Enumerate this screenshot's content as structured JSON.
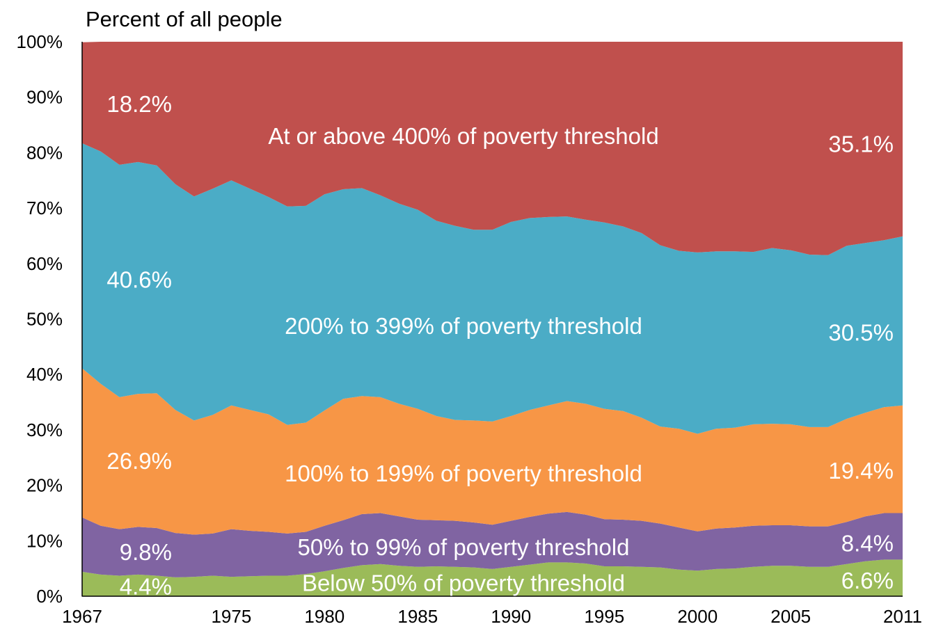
{
  "chart_data": {
    "type": "area",
    "stacked": true,
    "title": "Percent of all people",
    "ylim": [
      0,
      100
    ],
    "y_ticks": [
      "0%",
      "10%",
      "20%",
      "30%",
      "40%",
      "50%",
      "60%",
      "70%",
      "80%",
      "90%",
      "100%"
    ],
    "x_range": [
      1967,
      2011
    ],
    "x_ticks": [
      "1967",
      "1975",
      "1980",
      "1985",
      "1990",
      "1995",
      "2000",
      "2005",
      "2011"
    ],
    "x": [
      1967,
      1968,
      1969,
      1970,
      1971,
      1972,
      1973,
      1974,
      1975,
      1976,
      1977,
      1978,
      1979,
      1980,
      1981,
      1982,
      1983,
      1984,
      1985,
      1986,
      1987,
      1988,
      1989,
      1990,
      1991,
      1992,
      1993,
      1994,
      1995,
      1996,
      1997,
      1998,
      1999,
      2000,
      2001,
      2002,
      2003,
      2004,
      2005,
      2006,
      2007,
      2008,
      2009,
      2010,
      2011
    ],
    "series": [
      {
        "name": "Below 50% of poverty threshold",
        "color": "#9BBB59",
        "values": [
          4.4,
          3.9,
          3.7,
          3.9,
          3.7,
          3.4,
          3.5,
          3.7,
          3.5,
          3.6,
          3.7,
          3.7,
          4.0,
          4.5,
          5.1,
          5.6,
          5.8,
          5.5,
          5.3,
          5.4,
          5.3,
          5.2,
          4.9,
          5.3,
          5.7,
          6.1,
          6.1,
          5.9,
          5.4,
          5.4,
          5.3,
          5.2,
          4.8,
          4.6,
          4.9,
          5.0,
          5.3,
          5.5,
          5.5,
          5.3,
          5.3,
          5.8,
          6.3,
          6.6,
          6.6
        ]
      },
      {
        "name": "50% to 99% of poverty threshold",
        "color": "#8064A2",
        "values": [
          9.8,
          8.8,
          8.4,
          8.6,
          8.6,
          8.0,
          7.6,
          7.6,
          8.6,
          8.2,
          7.9,
          7.6,
          7.6,
          8.2,
          8.6,
          9.2,
          9.2,
          8.9,
          8.5,
          8.3,
          8.3,
          8.1,
          8.0,
          8.3,
          8.6,
          8.8,
          9.1,
          8.8,
          8.5,
          8.4,
          8.3,
          7.9,
          7.6,
          7.1,
          7.3,
          7.4,
          7.4,
          7.3,
          7.3,
          7.3,
          7.3,
          7.6,
          8.1,
          8.4,
          8.4
        ]
      },
      {
        "name": "100% to 199% of poverty threshold",
        "color": "#F79646",
        "values": [
          26.9,
          25.6,
          23.8,
          24.0,
          24.3,
          22.2,
          20.6,
          21.4,
          22.3,
          21.8,
          21.2,
          19.6,
          19.7,
          20.8,
          21.9,
          21.3,
          20.9,
          20.3,
          20.0,
          18.8,
          18.2,
          18.4,
          18.6,
          18.9,
          19.3,
          19.5,
          20.0,
          20.0,
          19.9,
          19.6,
          18.6,
          17.5,
          17.8,
          17.6,
          18.0,
          18.0,
          18.3,
          18.3,
          18.2,
          17.9,
          17.9,
          18.6,
          18.7,
          19.1,
          19.4
        ]
      },
      {
        "name": "200% to 399% of poverty threshold",
        "color": "#4BACC6",
        "values": [
          40.6,
          41.9,
          41.9,
          41.8,
          41.1,
          40.7,
          40.4,
          40.8,
          40.6,
          39.9,
          39.2,
          39.4,
          39.1,
          39.0,
          37.8,
          37.5,
          36.4,
          36.1,
          35.9,
          35.2,
          35.0,
          34.4,
          34.6,
          35.0,
          34.6,
          34.0,
          33.3,
          33.2,
          33.6,
          33.3,
          33.3,
          32.7,
          32.1,
          32.7,
          32.0,
          31.8,
          31.1,
          31.7,
          31.4,
          31.1,
          31.0,
          31.2,
          30.6,
          30.1,
          30.5
        ]
      },
      {
        "name": "At or above 400% of poverty threshold",
        "color": "#C0504D",
        "values": [
          18.2,
          19.8,
          22.2,
          21.8,
          22.3,
          25.7,
          27.9,
          26.5,
          25.0,
          26.5,
          28.0,
          29.7,
          29.6,
          27.5,
          26.6,
          26.4,
          27.7,
          29.2,
          30.3,
          32.3,
          33.2,
          33.9,
          33.9,
          32.5,
          31.8,
          31.6,
          31.5,
          32.1,
          32.6,
          33.3,
          34.5,
          36.7,
          37.7,
          38.0,
          37.8,
          37.8,
          37.9,
          37.2,
          37.6,
          38.4,
          38.5,
          36.8,
          36.3,
          35.8,
          35.1
        ]
      }
    ],
    "annotations": [
      {
        "series": 0,
        "left": "4.4%",
        "label": "Below 50% of poverty threshold",
        "right": "6.6%"
      },
      {
        "series": 1,
        "left": "9.8%",
        "label": "50% to 99% of poverty threshold",
        "right": "8.4%"
      },
      {
        "series": 2,
        "left": "26.9%",
        "label": "100% to 199% of poverty threshold",
        "right": "19.4%"
      },
      {
        "series": 3,
        "left": "40.6%",
        "label": "200% to 399% of poverty threshold",
        "right": "30.5%"
      },
      {
        "series": 4,
        "left": "18.2%",
        "label": "At or above 400% of poverty threshold",
        "right": "35.1%"
      }
    ]
  }
}
